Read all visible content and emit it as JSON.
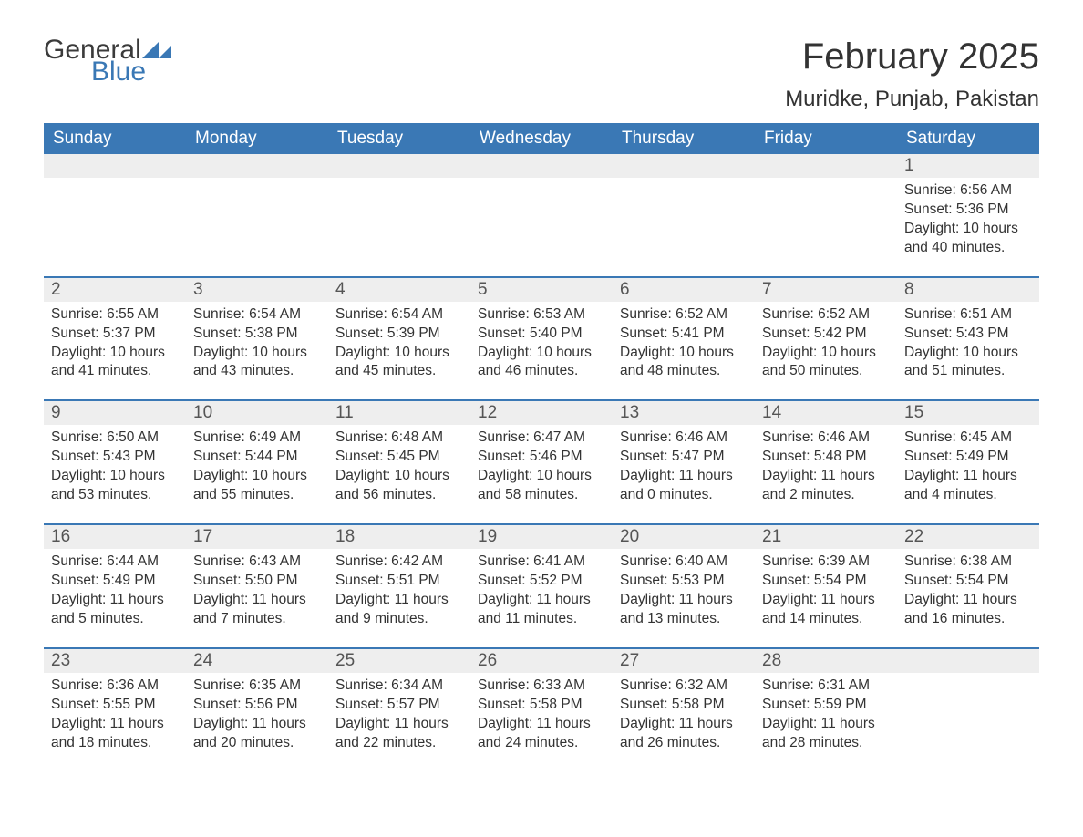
{
  "brand": {
    "line1": "General",
    "line2": "Blue",
    "accent_color": "#3a78b5"
  },
  "header": {
    "month_title": "February 2025",
    "location": "Muridke, Punjab, Pakistan"
  },
  "colors": {
    "header_bg": "#3a78b5",
    "header_text": "#ffffff",
    "daynum_bg": "#eeeeee",
    "row_divider": "#3a78b5",
    "body_text": "#333333",
    "page_bg": "#ffffff"
  },
  "typography": {
    "month_title_fontsize": 40,
    "location_fontsize": 24,
    "dow_fontsize": 19,
    "daynum_fontsize": 19,
    "body_fontsize": 15.5
  },
  "days_of_week": [
    "Sunday",
    "Monday",
    "Tuesday",
    "Wednesday",
    "Thursday",
    "Friday",
    "Saturday"
  ],
  "weeks": [
    [
      null,
      null,
      null,
      null,
      null,
      null,
      {
        "n": "1",
        "sunrise": "Sunrise: 6:56 AM",
        "sunset": "Sunset: 5:36 PM",
        "daylight": "Daylight: 10 hours and 40 minutes."
      }
    ],
    [
      {
        "n": "2",
        "sunrise": "Sunrise: 6:55 AM",
        "sunset": "Sunset: 5:37 PM",
        "daylight": "Daylight: 10 hours and 41 minutes."
      },
      {
        "n": "3",
        "sunrise": "Sunrise: 6:54 AM",
        "sunset": "Sunset: 5:38 PM",
        "daylight": "Daylight: 10 hours and 43 minutes."
      },
      {
        "n": "4",
        "sunrise": "Sunrise: 6:54 AM",
        "sunset": "Sunset: 5:39 PM",
        "daylight": "Daylight: 10 hours and 45 minutes."
      },
      {
        "n": "5",
        "sunrise": "Sunrise: 6:53 AM",
        "sunset": "Sunset: 5:40 PM",
        "daylight": "Daylight: 10 hours and 46 minutes."
      },
      {
        "n": "6",
        "sunrise": "Sunrise: 6:52 AM",
        "sunset": "Sunset: 5:41 PM",
        "daylight": "Daylight: 10 hours and 48 minutes."
      },
      {
        "n": "7",
        "sunrise": "Sunrise: 6:52 AM",
        "sunset": "Sunset: 5:42 PM",
        "daylight": "Daylight: 10 hours and 50 minutes."
      },
      {
        "n": "8",
        "sunrise": "Sunrise: 6:51 AM",
        "sunset": "Sunset: 5:43 PM",
        "daylight": "Daylight: 10 hours and 51 minutes."
      }
    ],
    [
      {
        "n": "9",
        "sunrise": "Sunrise: 6:50 AM",
        "sunset": "Sunset: 5:43 PM",
        "daylight": "Daylight: 10 hours and 53 minutes."
      },
      {
        "n": "10",
        "sunrise": "Sunrise: 6:49 AM",
        "sunset": "Sunset: 5:44 PM",
        "daylight": "Daylight: 10 hours and 55 minutes."
      },
      {
        "n": "11",
        "sunrise": "Sunrise: 6:48 AM",
        "sunset": "Sunset: 5:45 PM",
        "daylight": "Daylight: 10 hours and 56 minutes."
      },
      {
        "n": "12",
        "sunrise": "Sunrise: 6:47 AM",
        "sunset": "Sunset: 5:46 PM",
        "daylight": "Daylight: 10 hours and 58 minutes."
      },
      {
        "n": "13",
        "sunrise": "Sunrise: 6:46 AM",
        "sunset": "Sunset: 5:47 PM",
        "daylight": "Daylight: 11 hours and 0 minutes."
      },
      {
        "n": "14",
        "sunrise": "Sunrise: 6:46 AM",
        "sunset": "Sunset: 5:48 PM",
        "daylight": "Daylight: 11 hours and 2 minutes."
      },
      {
        "n": "15",
        "sunrise": "Sunrise: 6:45 AM",
        "sunset": "Sunset: 5:49 PM",
        "daylight": "Daylight: 11 hours and 4 minutes."
      }
    ],
    [
      {
        "n": "16",
        "sunrise": "Sunrise: 6:44 AM",
        "sunset": "Sunset: 5:49 PM",
        "daylight": "Daylight: 11 hours and 5 minutes."
      },
      {
        "n": "17",
        "sunrise": "Sunrise: 6:43 AM",
        "sunset": "Sunset: 5:50 PM",
        "daylight": "Daylight: 11 hours and 7 minutes."
      },
      {
        "n": "18",
        "sunrise": "Sunrise: 6:42 AM",
        "sunset": "Sunset: 5:51 PM",
        "daylight": "Daylight: 11 hours and 9 minutes."
      },
      {
        "n": "19",
        "sunrise": "Sunrise: 6:41 AM",
        "sunset": "Sunset: 5:52 PM",
        "daylight": "Daylight: 11 hours and 11 minutes."
      },
      {
        "n": "20",
        "sunrise": "Sunrise: 6:40 AM",
        "sunset": "Sunset: 5:53 PM",
        "daylight": "Daylight: 11 hours and 13 minutes."
      },
      {
        "n": "21",
        "sunrise": "Sunrise: 6:39 AM",
        "sunset": "Sunset: 5:54 PM",
        "daylight": "Daylight: 11 hours and 14 minutes."
      },
      {
        "n": "22",
        "sunrise": "Sunrise: 6:38 AM",
        "sunset": "Sunset: 5:54 PM",
        "daylight": "Daylight: 11 hours and 16 minutes."
      }
    ],
    [
      {
        "n": "23",
        "sunrise": "Sunrise: 6:36 AM",
        "sunset": "Sunset: 5:55 PM",
        "daylight": "Daylight: 11 hours and 18 minutes."
      },
      {
        "n": "24",
        "sunrise": "Sunrise: 6:35 AM",
        "sunset": "Sunset: 5:56 PM",
        "daylight": "Daylight: 11 hours and 20 minutes."
      },
      {
        "n": "25",
        "sunrise": "Sunrise: 6:34 AM",
        "sunset": "Sunset: 5:57 PM",
        "daylight": "Daylight: 11 hours and 22 minutes."
      },
      {
        "n": "26",
        "sunrise": "Sunrise: 6:33 AM",
        "sunset": "Sunset: 5:58 PM",
        "daylight": "Daylight: 11 hours and 24 minutes."
      },
      {
        "n": "27",
        "sunrise": "Sunrise: 6:32 AM",
        "sunset": "Sunset: 5:58 PM",
        "daylight": "Daylight: 11 hours and 26 minutes."
      },
      {
        "n": "28",
        "sunrise": "Sunrise: 6:31 AM",
        "sunset": "Sunset: 5:59 PM",
        "daylight": "Daylight: 11 hours and 28 minutes."
      },
      null
    ]
  ]
}
